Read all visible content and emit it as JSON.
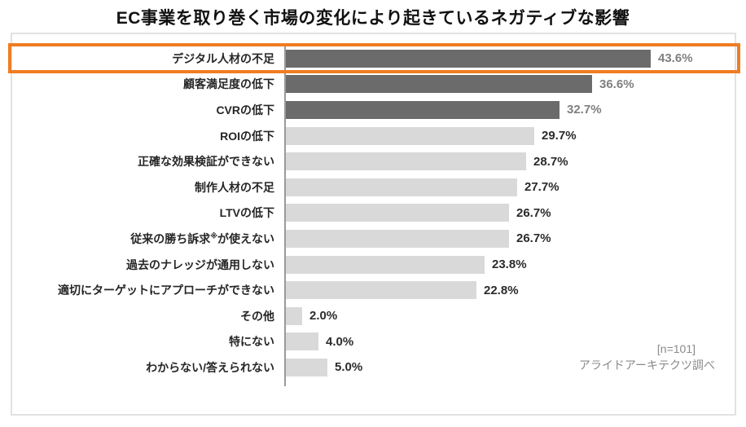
{
  "title": "EC事業を取り巻く市場の変化により起きているネガティブな影響",
  "source": {
    "n_label": "[n=101]",
    "credit": "アライドアーキテクツ調べ"
  },
  "colors": {
    "bar_dark": "#6b6b6b",
    "bar_light": "#d9d9d9",
    "value_text_dark_rows": "#7f7f7f",
    "value_text_light_rows": "#2b2b2b",
    "category_text": "#262626",
    "highlight": "#ee7d22",
    "axis": "#9a9a9a"
  },
  "chart_data": {
    "type": "bar",
    "orientation": "horizontal",
    "title": "EC事業を取り巻く市場の変化により起きているネガティブな影響",
    "xlabel": "",
    "ylabel": "",
    "xlim": [
      0,
      50
    ],
    "grid": false,
    "legend": false,
    "categories": [
      "デジタル人材の不足",
      "顧客満足度の低下",
      "CVRの低下",
      "ROIの低下",
      "正確な効果検証ができない",
      "制作人材の不足",
      "LTVの低下",
      "従来の勝ち訴求※が使えない",
      "過去のナレッジが通用しない",
      "適切にターゲットにアプローチができない",
      "その他",
      "特にない",
      "わからない/答えられない"
    ],
    "values": [
      43.6,
      36.6,
      32.7,
      29.7,
      28.7,
      27.7,
      26.7,
      26.7,
      23.8,
      22.8,
      2.0,
      4.0,
      5.0
    ],
    "value_labels": [
      "43.6%",
      "36.6%",
      "32.7%",
      "29.7%",
      "28.7%",
      "27.7%",
      "26.7%",
      "26.7%",
      "23.8%",
      "22.8%",
      "2.0%",
      "4.0%",
      "5.0%"
    ],
    "bar_emphasis": [
      "dark",
      "dark",
      "dark",
      "light",
      "light",
      "light",
      "light",
      "light",
      "light",
      "light",
      "light",
      "light",
      "light"
    ],
    "highlighted_row_index": 0
  }
}
